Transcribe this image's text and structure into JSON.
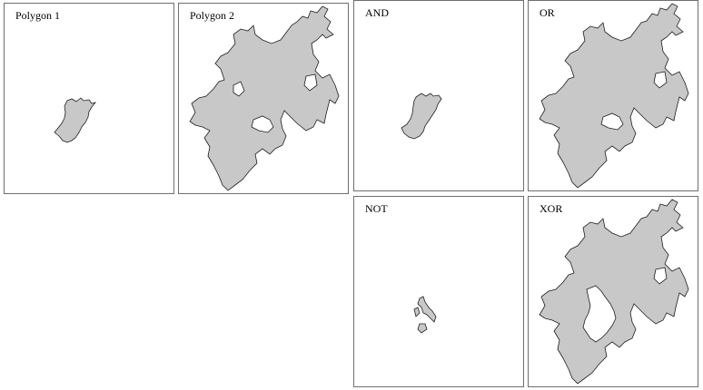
{
  "panels": [
    {
      "title": "Polygon 1"
    },
    {
      "title": "Polygon 2"
    },
    {
      "title": "AND"
    },
    {
      "title": "OR"
    },
    {
      "title": "NOT"
    },
    {
      "title": "XOR"
    }
  ],
  "colors": {
    "polygon_fill": "#c8c8c8",
    "polygon_stroke": "#1e1e1e",
    "panel_border": "#6f6f6f",
    "background": "#ffffff"
  }
}
